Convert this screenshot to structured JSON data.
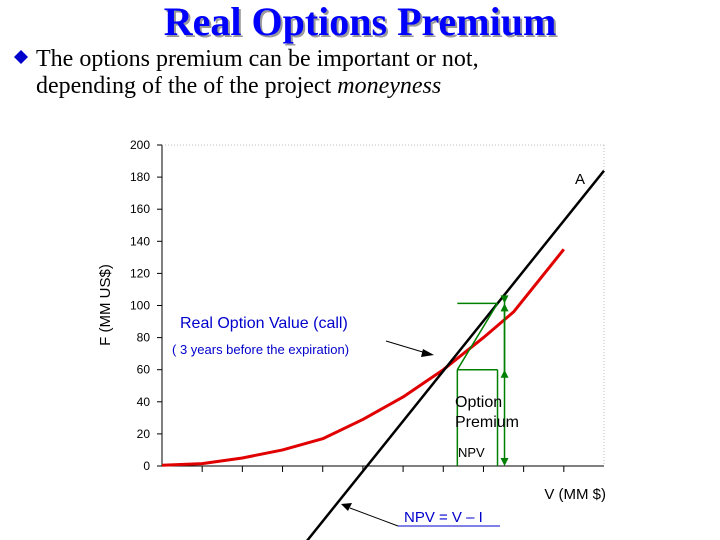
{
  "slide": {
    "title": "Real Options Premium",
    "bullet_line1": "The options premium can be important or not,",
    "bullet_line2_prefix": "depending of the of the project ",
    "bullet_line2_italic": "moneyness"
  },
  "colors": {
    "title": "#0000ff",
    "bullet": "#0000cc",
    "option_curve": "#e00000",
    "npv_line": "#000000",
    "premium_marker": "#008000",
    "callout_text": "#0000cc"
  },
  "chart_data": {
    "type": "line",
    "title": "",
    "xlabel": "V (MM $)",
    "ylabel": "F (MM US$)",
    "ylim": [
      0,
      200
    ],
    "yticks": [
      0,
      20,
      40,
      60,
      80,
      100,
      120,
      140,
      160,
      180,
      200
    ],
    "ytick_labels": [
      "0",
      "20",
      "40",
      "60",
      "80",
      "100",
      "120",
      "140",
      "160",
      "180",
      "200"
    ],
    "xlim": [
      0,
      220
    ],
    "grid": false,
    "series": [
      {
        "name": "Real Option Value (call)",
        "color": "#e00000",
        "x": [
          0,
          20,
          40,
          60,
          80,
          100,
          120,
          140,
          160,
          175,
          200
        ],
        "y": [
          0.5,
          1.5,
          5,
          10,
          17,
          29,
          43,
          60,
          80,
          96,
          135
        ]
      },
      {
        "name": "NPV = V – I",
        "color": "#000000",
        "x": [
          70,
          220
        ],
        "y": [
          -50,
          184
        ]
      }
    ],
    "annotations": {
      "curve_label": "Real Option Value (call)",
      "curve_sublabel": "( 3 years before the expiration)",
      "line_end_label": "A",
      "premium_label_1": "Option",
      "premium_label_2": "Premium",
      "npv_label": "NPV",
      "npv_formula": "NPV = V – I"
    }
  }
}
